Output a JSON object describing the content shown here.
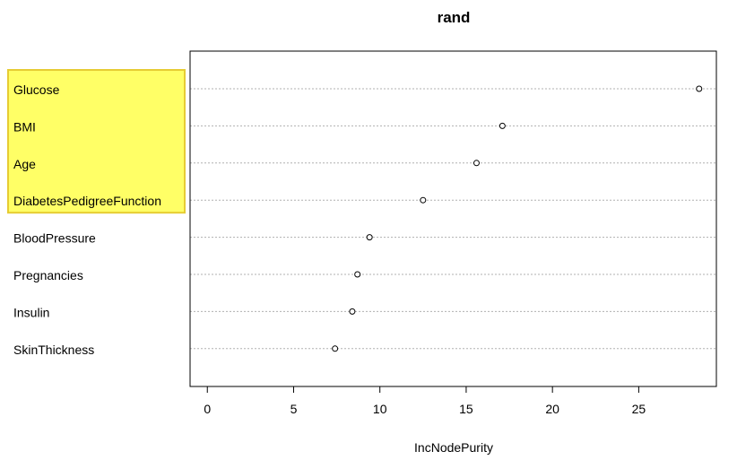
{
  "chart_data": {
    "type": "scatter",
    "subtype": "dotchart",
    "title": "rand",
    "xlabel": "IncNodePurity",
    "ylabel": "",
    "xlim": [
      -1.0,
      29.5
    ],
    "xticks": [
      0,
      5,
      10,
      15,
      20,
      25
    ],
    "grid": "horizontal-dotted",
    "categories": [
      "Glucose",
      "BMI",
      "Age",
      "DiabetesPedigreeFunction",
      "BloodPressure",
      "Pregnancies",
      "Insulin",
      "SkinThickness"
    ],
    "values": [
      28.5,
      17.1,
      15.6,
      12.5,
      9.4,
      8.7,
      8.4,
      7.4
    ],
    "highlighted_categories": [
      "Glucose",
      "BMI",
      "Age",
      "DiabetesPedigreeFunction"
    ],
    "highlight_color": "#ffff66",
    "highlight_border_color": "#e6cc33"
  }
}
